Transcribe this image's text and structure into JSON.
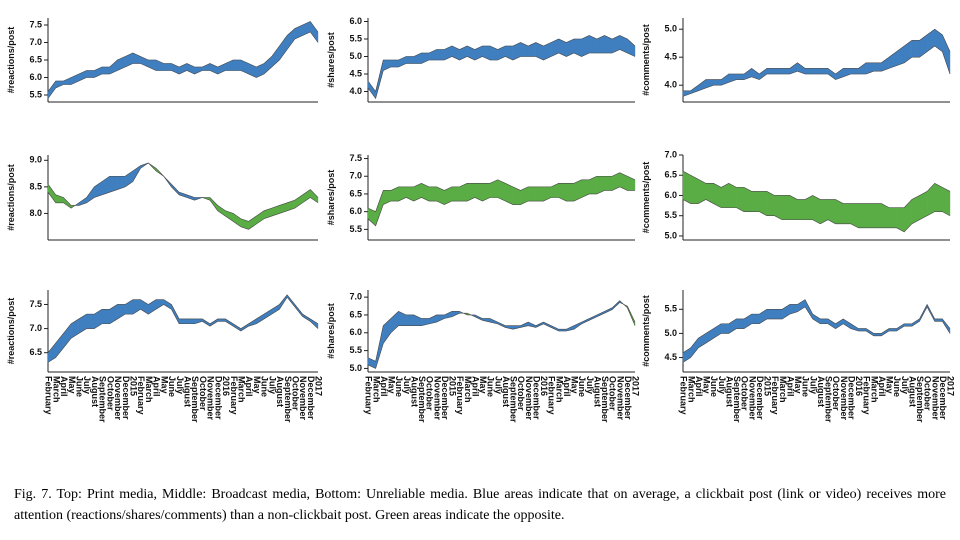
{
  "chart_data": [
    {
      "type": "area-diff",
      "ylabel": "#reactions/post",
      "ylim": [
        5.3,
        7.7
      ],
      "yticks": [
        5.5,
        {
          "value": 6,
          "label": "6.0"
        },
        6.5,
        {
          "value": 7,
          "label": "7.0"
        },
        7.5
      ],
      "above_color": "#3f7fc0",
      "below_color": "#5aac44",
      "series": [
        {
          "color": "#4a4a4a",
          "values": [
            5.6,
            5.9,
            5.9,
            6.0,
            6.1,
            6.2,
            6.2,
            6.3,
            6.3,
            6.5,
            6.6,
            6.7,
            6.6,
            6.5,
            6.5,
            6.4,
            6.4,
            6.3,
            6.4,
            6.3,
            6.3,
            6.4,
            6.3,
            6.4,
            6.5,
            6.5,
            6.4,
            6.3,
            6.4,
            6.6,
            6.9,
            7.2,
            7.4,
            7.5,
            7.6,
            7.3
          ]
        },
        {
          "color": "#4a4a4a",
          "values": [
            5.4,
            5.7,
            5.8,
            5.8,
            5.9,
            6.0,
            6.0,
            6.1,
            6.1,
            6.2,
            6.3,
            6.4,
            6.4,
            6.3,
            6.2,
            6.2,
            6.2,
            6.1,
            6.2,
            6.1,
            6.2,
            6.2,
            6.1,
            6.2,
            6.2,
            6.2,
            6.1,
            6.0,
            6.1,
            6.3,
            6.5,
            6.8,
            7.1,
            7.2,
            7.3,
            7.0
          ]
        }
      ]
    },
    {
      "type": "area-diff",
      "ylabel": "#shares/post",
      "ylim": [
        3.7,
        6.1
      ],
      "yticks": [
        {
          "value": 4,
          "label": "4.0"
        },
        4.5,
        {
          "value": 5,
          "label": "5.0"
        },
        5.5,
        {
          "value": 6,
          "label": "6.0"
        }
      ],
      "above_color": "#3f7fc0",
      "below_color": "#5aac44",
      "series": [
        {
          "color": "#4a4a4a",
          "values": [
            4.3,
            4.0,
            4.9,
            4.9,
            4.9,
            5.0,
            5.0,
            5.1,
            5.1,
            5.2,
            5.2,
            5.3,
            5.2,
            5.3,
            5.2,
            5.3,
            5.3,
            5.2,
            5.3,
            5.3,
            5.4,
            5.3,
            5.4,
            5.3,
            5.4,
            5.5,
            5.4,
            5.5,
            5.5,
            5.6,
            5.5,
            5.6,
            5.5,
            5.6,
            5.5,
            5.3
          ]
        },
        {
          "color": "#4a4a4a",
          "values": [
            4.1,
            3.8,
            4.6,
            4.7,
            4.7,
            4.8,
            4.8,
            4.8,
            4.9,
            4.9,
            4.9,
            5.0,
            4.9,
            5.0,
            4.9,
            5.0,
            4.9,
            4.9,
            5.0,
            4.9,
            5.0,
            5.0,
            5.0,
            4.9,
            5.0,
            5.1,
            5.0,
            5.1,
            5.0,
            5.1,
            5.1,
            5.1,
            5.1,
            5.2,
            5.1,
            5.0
          ]
        }
      ]
    },
    {
      "type": "area-diff",
      "ylabel": "#comments/post",
      "ylim": [
        3.7,
        5.2
      ],
      "yticks": [
        {
          "value": 4,
          "label": "4.0"
        },
        4.5,
        {
          "value": 5,
          "label": "5.0"
        }
      ],
      "above_color": "#3f7fc0",
      "below_color": "#5aac44",
      "series": [
        {
          "color": "#4a4a4a",
          "values": [
            3.9,
            3.9,
            4.0,
            4.1,
            4.1,
            4.1,
            4.2,
            4.2,
            4.2,
            4.3,
            4.2,
            4.3,
            4.3,
            4.3,
            4.3,
            4.4,
            4.3,
            4.3,
            4.3,
            4.3,
            4.2,
            4.3,
            4.3,
            4.3,
            4.4,
            4.4,
            4.4,
            4.5,
            4.6,
            4.7,
            4.8,
            4.8,
            4.9,
            5.0,
            4.9,
            4.6
          ]
        },
        {
          "color": "#4a4a4a",
          "values": [
            3.8,
            3.85,
            3.9,
            3.95,
            4.0,
            4.0,
            4.05,
            4.1,
            4.1,
            4.15,
            4.1,
            4.2,
            4.2,
            4.2,
            4.2,
            4.25,
            4.2,
            4.2,
            4.2,
            4.2,
            4.1,
            4.15,
            4.2,
            4.2,
            4.2,
            4.25,
            4.25,
            4.3,
            4.35,
            4.4,
            4.5,
            4.5,
            4.6,
            4.7,
            4.6,
            4.2
          ]
        }
      ]
    },
    {
      "type": "area-diff",
      "ylabel": "#reactions/post",
      "ylim": [
        7.5,
        9.1
      ],
      "yticks": [
        {
          "value": 8,
          "label": "8.0"
        },
        8.5,
        {
          "value": 9,
          "label": "9.0"
        }
      ],
      "above_color": "#3f7fc0",
      "below_color": "#5aac44",
      "series": [
        {
          "color": "#4a4a4a",
          "values": [
            8.4,
            8.2,
            8.2,
            8.1,
            8.2,
            8.3,
            8.5,
            8.6,
            8.7,
            8.7,
            8.7,
            8.8,
            8.9,
            8.95,
            8.8,
            8.7,
            8.55,
            8.4,
            8.35,
            8.3,
            8.3,
            8.25,
            8.05,
            7.95,
            7.85,
            7.75,
            7.7,
            7.8,
            7.9,
            7.95,
            8.0,
            8.05,
            8.1,
            8.2,
            8.3,
            8.2
          ]
        },
        {
          "color": "#4a4a4a",
          "values": [
            8.55,
            8.35,
            8.3,
            8.15,
            8.15,
            8.2,
            8.3,
            8.35,
            8.4,
            8.45,
            8.5,
            8.6,
            8.85,
            8.95,
            8.85,
            8.7,
            8.5,
            8.35,
            8.3,
            8.25,
            8.3,
            8.3,
            8.15,
            8.05,
            8.0,
            7.9,
            7.85,
            7.95,
            8.05,
            8.1,
            8.15,
            8.2,
            8.25,
            8.35,
            8.45,
            8.3
          ]
        }
      ]
    },
    {
      "type": "area-diff",
      "ylabel": "#shares/post",
      "ylim": [
        5.2,
        7.6
      ],
      "yticks": [
        5.5,
        {
          "value": 6,
          "label": "6.0"
        },
        6.5,
        {
          "value": 7,
          "label": "7.0"
        },
        7.5
      ],
      "above_color": "#3f7fc0",
      "below_color": "#5aac44",
      "series": [
        {
          "color": "#4a4a4a",
          "values": [
            5.8,
            5.6,
            6.2,
            6.3,
            6.3,
            6.4,
            6.3,
            6.4,
            6.3,
            6.3,
            6.2,
            6.3,
            6.3,
            6.3,
            6.4,
            6.3,
            6.4,
            6.4,
            6.3,
            6.2,
            6.2,
            6.3,
            6.3,
            6.3,
            6.4,
            6.4,
            6.3,
            6.3,
            6.4,
            6.5,
            6.5,
            6.6,
            6.6,
            6.7,
            6.6,
            6.6
          ]
        },
        {
          "color": "#4a4a4a",
          "values": [
            6.1,
            6.0,
            6.6,
            6.6,
            6.7,
            6.7,
            6.7,
            6.8,
            6.7,
            6.7,
            6.6,
            6.7,
            6.7,
            6.8,
            6.8,
            6.8,
            6.8,
            6.9,
            6.8,
            6.7,
            6.6,
            6.7,
            6.7,
            6.7,
            6.7,
            6.8,
            6.8,
            6.8,
            6.9,
            6.9,
            7.0,
            7.0,
            7.0,
            7.1,
            7.0,
            6.9
          ]
        }
      ]
    },
    {
      "type": "area-diff",
      "ylabel": "#comments/post",
      "ylim": [
        4.9,
        7.0
      ],
      "yticks": [
        {
          "value": 5,
          "label": "5.0"
        },
        5.5,
        {
          "value": 6,
          "label": "6.0"
        },
        6.5,
        {
          "value": 7,
          "label": "7.0"
        }
      ],
      "above_color": "#3f7fc0",
      "below_color": "#5aac44",
      "series": [
        {
          "color": "#4a4a4a",
          "values": [
            5.9,
            5.8,
            5.8,
            5.9,
            5.8,
            5.7,
            5.7,
            5.7,
            5.6,
            5.6,
            5.6,
            5.5,
            5.5,
            5.4,
            5.4,
            5.4,
            5.4,
            5.4,
            5.3,
            5.4,
            5.3,
            5.3,
            5.3,
            5.2,
            5.2,
            5.2,
            5.2,
            5.2,
            5.2,
            5.1,
            5.3,
            5.4,
            5.5,
            5.6,
            5.6,
            5.5
          ]
        },
        {
          "color": "#4a4a4a",
          "values": [
            6.6,
            6.5,
            6.4,
            6.3,
            6.3,
            6.2,
            6.3,
            6.2,
            6.2,
            6.1,
            6.1,
            6.1,
            6.0,
            6.0,
            6.0,
            5.9,
            5.9,
            6.0,
            5.9,
            5.9,
            5.9,
            5.8,
            5.8,
            5.8,
            5.8,
            5.8,
            5.8,
            5.7,
            5.7,
            5.7,
            5.9,
            6.0,
            6.1,
            6.3,
            6.2,
            6.1
          ]
        }
      ]
    },
    {
      "type": "area-diff",
      "ylabel": "#reactions/post",
      "ylim": [
        6.1,
        7.8
      ],
      "yticks": [
        6.5,
        {
          "value": 7,
          "label": "7.0"
        },
        7.5
      ],
      "above_color": "#3f7fc0",
      "below_color": "#5aac44",
      "categories": [
        "February",
        "March",
        "April",
        "May",
        "June",
        "July",
        "August",
        "September",
        "October",
        "November",
        "December",
        "2015",
        "February",
        "March",
        "April",
        "May",
        "June",
        "July",
        "August",
        "September",
        "October",
        "November",
        "December",
        "2016",
        "February",
        "March",
        "April",
        "May",
        "June",
        "July",
        "August",
        "September",
        "October",
        "November",
        "December",
        "2017"
      ],
      "series": [
        {
          "color": "#4a4a4a",
          "values": [
            6.5,
            6.7,
            6.9,
            7.1,
            7.2,
            7.3,
            7.3,
            7.4,
            7.4,
            7.5,
            7.5,
            7.6,
            7.6,
            7.5,
            7.6,
            7.6,
            7.5,
            7.2,
            7.2,
            7.2,
            7.2,
            7.1,
            7.2,
            7.2,
            7.1,
            7.0,
            7.1,
            7.2,
            7.3,
            7.4,
            7.5,
            7.7,
            7.5,
            7.3,
            7.2,
            7.1
          ]
        },
        {
          "color": "#4a4a4a",
          "values": [
            6.3,
            6.4,
            6.6,
            6.8,
            6.9,
            7.0,
            7.0,
            7.1,
            7.1,
            7.2,
            7.3,
            7.3,
            7.4,
            7.3,
            7.4,
            7.5,
            7.4,
            7.1,
            7.1,
            7.1,
            7.15,
            7.05,
            7.15,
            7.15,
            7.05,
            6.95,
            7.05,
            7.1,
            7.2,
            7.3,
            7.4,
            7.65,
            7.45,
            7.25,
            7.15,
            7.0
          ]
        }
      ]
    },
    {
      "type": "area-diff",
      "ylabel": "#shares/post",
      "ylim": [
        4.9,
        7.2
      ],
      "yticks": [
        {
          "value": 5,
          "label": "5.0"
        },
        5.5,
        {
          "value": 6,
          "label": "6.0"
        },
        6.5,
        {
          "value": 7,
          "label": "7.0"
        }
      ],
      "above_color": "#3f7fc0",
      "below_color": "#5aac44",
      "categories": [
        "February",
        "March",
        "April",
        "May",
        "June",
        "July",
        "August",
        "September",
        "October",
        "November",
        "December",
        "2015",
        "February",
        "March",
        "April",
        "May",
        "June",
        "July",
        "August",
        "September",
        "October",
        "November",
        "December",
        "2016",
        "February",
        "March",
        "April",
        "May",
        "June",
        "July",
        "August",
        "September",
        "October",
        "November",
        "December",
        "2017"
      ],
      "series": [
        {
          "color": "#4a4a4a",
          "values": [
            5.3,
            5.2,
            6.2,
            6.4,
            6.6,
            6.5,
            6.5,
            6.4,
            6.4,
            6.5,
            6.5,
            6.6,
            6.6,
            6.5,
            6.5,
            6.4,
            6.4,
            6.3,
            6.2,
            6.2,
            6.2,
            6.3,
            6.2,
            6.3,
            6.2,
            6.1,
            6.1,
            6.2,
            6.3,
            6.4,
            6.5,
            6.6,
            6.7,
            6.9,
            6.7,
            6.2
          ]
        },
        {
          "color": "#4a4a4a",
          "values": [
            5.1,
            5.0,
            5.7,
            6.0,
            6.2,
            6.2,
            6.2,
            6.2,
            6.25,
            6.3,
            6.4,
            6.45,
            6.55,
            6.55,
            6.45,
            6.35,
            6.3,
            6.25,
            6.15,
            6.1,
            6.15,
            6.2,
            6.15,
            6.25,
            6.15,
            6.05,
            6.05,
            6.1,
            6.25,
            6.35,
            6.45,
            6.55,
            6.65,
            6.85,
            6.75,
            6.3
          ]
        }
      ]
    },
    {
      "type": "area-diff",
      "ylabel": "#comments/post",
      "ylim": [
        4.2,
        5.9
      ],
      "yticks": [
        4.5,
        {
          "value": 5,
          "label": "5.0"
        },
        5.5
      ],
      "above_color": "#3f7fc0",
      "below_color": "#5aac44",
      "categories": [
        "February",
        "March",
        "April",
        "May",
        "June",
        "July",
        "August",
        "September",
        "October",
        "November",
        "December",
        "2015",
        "February",
        "March",
        "April",
        "May",
        "June",
        "July",
        "August",
        "September",
        "October",
        "November",
        "December",
        "2016",
        "February",
        "March",
        "April",
        "May",
        "June",
        "July",
        "August",
        "September",
        "October",
        "November",
        "December",
        "2017"
      ],
      "series": [
        {
          "color": "#4a4a4a",
          "values": [
            4.6,
            4.7,
            4.9,
            5.0,
            5.1,
            5.2,
            5.2,
            5.3,
            5.3,
            5.4,
            5.4,
            5.5,
            5.5,
            5.5,
            5.6,
            5.6,
            5.7,
            5.4,
            5.3,
            5.3,
            5.2,
            5.3,
            5.2,
            5.1,
            5.1,
            5.0,
            5.0,
            5.1,
            5.1,
            5.2,
            5.2,
            5.3,
            5.6,
            5.3,
            5.3,
            5.1
          ]
        },
        {
          "color": "#4a4a4a",
          "values": [
            4.4,
            4.5,
            4.7,
            4.8,
            4.9,
            5.0,
            5.0,
            5.1,
            5.1,
            5.2,
            5.2,
            5.3,
            5.3,
            5.3,
            5.4,
            5.45,
            5.55,
            5.3,
            5.2,
            5.2,
            5.1,
            5.2,
            5.1,
            5.05,
            5.05,
            4.95,
            4.95,
            5.05,
            5.05,
            5.15,
            5.15,
            5.25,
            5.55,
            5.25,
            5.25,
            5.0
          ]
        }
      ]
    }
  ],
  "caption": "Fig. 7.  Top: Print media, Middle: Broadcast media, Bottom: Unreliable media. Blue areas indicate that on average, a clickbait post (link or video) receives more attention (reactions/shares/comments) than a non-clickbait post. Green areas indicate the opposite."
}
